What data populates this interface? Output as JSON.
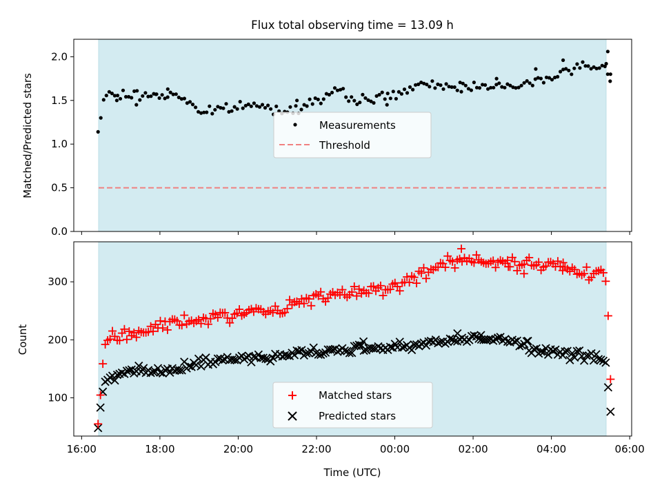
{
  "title": "Flux total observing time = 13.09 h",
  "chart_data": [
    {
      "type": "scatter",
      "name": "ratio",
      "title": "Flux total observing time = 13.09 h",
      "xlabel": "",
      "ylabel": "Matched/Predicted stars",
      "x_unit": "hours since 16:00 UTC",
      "xlim": [
        15.8,
        30.05
      ],
      "ylim": [
        0.0,
        2.2
      ],
      "yticks": [
        0.0,
        0.5,
        1.0,
        1.5,
        2.0
      ],
      "ytick_labels": [
        "0.0",
        "0.5",
        "1.0",
        "1.5",
        "2.0"
      ],
      "xticks": [
        16,
        18,
        20,
        22,
        24,
        26,
        28,
        30
      ],
      "shaded_span": [
        16.42,
        29.51
      ],
      "threshold": {
        "label": "Threshold",
        "value": 0.5,
        "color": "#f08080"
      },
      "series": [
        {
          "name": "Measurements",
          "color": "#000000",
          "keys": [
            [
              16.42,
              1.14
            ],
            [
              16.5,
              1.32
            ],
            [
              16.58,
              1.56
            ],
            [
              18.5,
              1.56
            ],
            [
              19.1,
              1.36
            ],
            [
              20.3,
              1.45
            ],
            [
              21.2,
              1.38
            ],
            [
              22.0,
              1.5
            ],
            [
              22.5,
              1.6
            ],
            [
              23.0,
              1.5
            ],
            [
              24.0,
              1.56
            ],
            [
              24.5,
              1.66
            ],
            [
              25.5,
              1.67
            ],
            [
              26.0,
              1.66
            ],
            [
              26.5,
              1.7
            ],
            [
              27.0,
              1.63
            ],
            [
              28.0,
              1.78
            ],
            [
              28.8,
              1.9
            ],
            [
              29.2,
              1.86
            ],
            [
              29.35,
              1.92
            ],
            [
              29.42,
              1.8
            ]
          ],
          "noise": 0.035,
          "count": 185,
          "extra": [
            [
              16.9,
              1.5
            ],
            [
              17.4,
              1.45
            ],
            [
              17.9,
              1.57
            ],
            [
              18.2,
              1.63
            ],
            [
              21.5,
              1.5
            ],
            [
              23.8,
              1.45
            ],
            [
              25.7,
              1.6
            ],
            [
              26.6,
              1.75
            ],
            [
              27.6,
              1.86
            ],
            [
              28.3,
              1.96
            ],
            [
              29.4,
              1.92
            ],
            [
              29.44,
              2.06
            ],
            [
              29.5,
              1.72
            ]
          ]
        }
      ],
      "legend": {
        "items": [
          "Measurements",
          "Threshold"
        ],
        "position": "center"
      }
    },
    {
      "type": "scatter",
      "name": "counts",
      "xlabel": "Time (UTC)",
      "ylabel": "Count",
      "x_unit": "hours since 16:00 UTC",
      "xlim": [
        15.8,
        30.05
      ],
      "ylim": [
        34,
        369
      ],
      "yticks": [
        100,
        200,
        300
      ],
      "ytick_labels": [
        "100",
        "200",
        "300"
      ],
      "xticks": [
        16,
        18,
        20,
        22,
        24,
        26,
        28,
        30
      ],
      "xtick_labels": [
        "16:00",
        "18:00",
        "20:00",
        "22:00",
        "00:00",
        "02:00",
        "04:00",
        "06:00"
      ],
      "shaded_span": [
        16.42,
        29.51
      ],
      "series": [
        {
          "name": "Matched stars",
          "marker": "plus",
          "color": "#ff0000",
          "keys": [
            [
              16.42,
              55
            ],
            [
              16.5,
              120
            ],
            [
              16.58,
              193
            ],
            [
              16.75,
              205
            ],
            [
              17.5,
              212
            ],
            [
              18.0,
              225
            ],
            [
              19.0,
              235
            ],
            [
              20.0,
              245
            ],
            [
              21.0,
              250
            ],
            [
              21.5,
              265
            ],
            [
              22.5,
              275
            ],
            [
              23.0,
              285
            ],
            [
              24.0,
              290
            ],
            [
              24.5,
              310
            ],
            [
              25.0,
              325
            ],
            [
              25.5,
              335
            ],
            [
              26.0,
              338
            ],
            [
              26.5,
              333
            ],
            [
              27.0,
              330
            ],
            [
              28.0,
              330
            ],
            [
              28.5,
              325
            ],
            [
              29.0,
              312
            ],
            [
              29.3,
              322
            ],
            [
              29.4,
              298
            ],
            [
              29.45,
              240
            ],
            [
              29.5,
              132
            ]
          ],
          "noise": 7,
          "count": 215,
          "extra": [
            [
              25.7,
              357
            ],
            [
              26.9,
              326
            ],
            [
              27.3,
              314
            ],
            [
              28.3,
              333
            ]
          ]
        },
        {
          "name": "Predicted stars",
          "marker": "x",
          "color": "#000000",
          "keys": [
            [
              16.42,
              48
            ],
            [
              16.5,
              94
            ],
            [
              16.58,
              125
            ],
            [
              16.75,
              138
            ],
            [
              17.5,
              145
            ],
            [
              18.5,
              148
            ],
            [
              19.0,
              160
            ],
            [
              19.5,
              165
            ],
            [
              20.0,
              168
            ],
            [
              21.0,
              172
            ],
            [
              22.0,
              180
            ],
            [
              23.0,
              185
            ],
            [
              24.0,
              188
            ],
            [
              25.0,
              195
            ],
            [
              26.0,
              205
            ],
            [
              27.0,
              198
            ],
            [
              27.5,
              185
            ],
            [
              28.0,
              180
            ],
            [
              28.5,
              172
            ],
            [
              29.0,
              170
            ],
            [
              29.3,
              165
            ],
            [
              29.4,
              160
            ],
            [
              29.45,
              117
            ],
            [
              29.5,
              76
            ]
          ],
          "noise": 5,
          "count": 215,
          "extra": [
            [
              23.2,
              197
            ],
            [
              25.6,
              211
            ],
            [
              26.2,
              208
            ],
            [
              27.4,
              198
            ]
          ]
        }
      ],
      "legend": {
        "items": [
          "Matched stars",
          "Predicted stars"
        ],
        "position": "lower center"
      }
    }
  ]
}
